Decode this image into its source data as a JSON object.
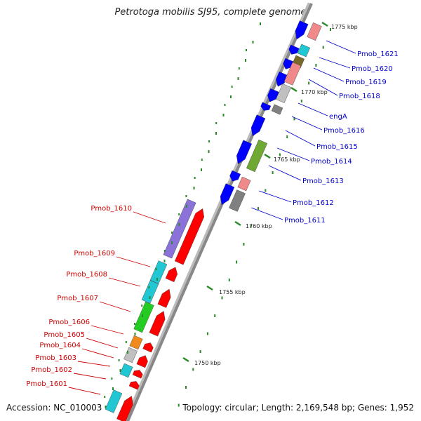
{
  "title": "Petrotoga mobilis SJ95, complete genome",
  "accession": "Accession: NC_010003",
  "topology": "Topology: circular; Length: 2,169,548 bp; Genes: 1,952",
  "colors": {
    "backbone": "#888888",
    "tick": "#2a8a2a",
    "forward_label": "#cc0000",
    "reverse_label": "#0000cc",
    "gene_palette": [
      "#0000ff",
      "#ff0000",
      "#f08a8a",
      "#22c7d4",
      "#7a6a2a",
      "#808080",
      "#c0c0c0",
      "#6fa832",
      "#8a72d8",
      "#22cc22",
      "#f08a1a"
    ]
  },
  "scale": {
    "labels": [
      "1750 kbp",
      "1755 kbp",
      "1760 kbp",
      "1765 kbp",
      "1770 kbp",
      "1775 kbp"
    ]
  },
  "genes_reverse": [
    "Pmob_1621",
    "Pmob_1620",
    "Pmob_1619",
    "Pmob_1618",
    "engA",
    "Pmob_1616",
    "Pmob_1615",
    "Pmob_1614",
    "Pmob_1613",
    "Pmob_1612",
    "Pmob_1611"
  ],
  "genes_forward": [
    "Pmob_1610",
    "Pmob_1609",
    "Pmob_1608",
    "Pmob_1607",
    "Pmob_1606",
    "Pmob_1605",
    "Pmob_1604",
    "Pmob_1603",
    "Pmob_1602",
    "Pmob_1601"
  ]
}
